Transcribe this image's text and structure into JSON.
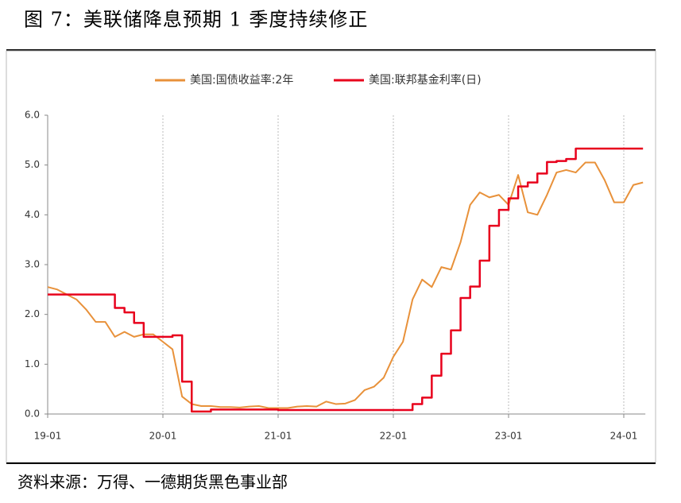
{
  "chart_data": {
    "type": "line",
    "title": "图 7：美联储降息预期 1 季度持续修正",
    "source": "资料来源：万得、一德期货黑色事业部",
    "x": [
      "19-01",
      "19-02",
      "19-03",
      "19-04",
      "19-05",
      "19-06",
      "19-07",
      "19-08",
      "19-09",
      "19-10",
      "19-11",
      "19-12",
      "20-01",
      "20-02",
      "20-03",
      "20-04",
      "20-05",
      "20-06",
      "20-07",
      "20-08",
      "20-09",
      "20-10",
      "20-11",
      "20-12",
      "21-01",
      "21-02",
      "21-03",
      "21-04",
      "21-05",
      "21-06",
      "21-07",
      "21-08",
      "21-09",
      "21-10",
      "21-11",
      "21-12",
      "22-01",
      "22-02",
      "22-03",
      "22-04",
      "22-05",
      "22-06",
      "22-07",
      "22-08",
      "22-09",
      "22-10",
      "22-11",
      "22-12",
      "23-01",
      "23-02",
      "23-03",
      "23-04",
      "23-05",
      "23-06",
      "23-07",
      "23-08",
      "23-09",
      "23-10",
      "23-11",
      "23-12",
      "24-01",
      "24-02",
      "24-03"
    ],
    "xticks": [
      "19-01",
      "20-01",
      "21-01",
      "22-01",
      "23-01",
      "24-01"
    ],
    "series": [
      {
        "name": "美国:国债收益率:2年",
        "color": "#e8913a",
        "values": [
          2.55,
          2.5,
          2.4,
          2.3,
          2.1,
          1.85,
          1.85,
          1.55,
          1.65,
          1.55,
          1.6,
          1.6,
          1.45,
          1.3,
          0.35,
          0.2,
          0.16,
          0.16,
          0.14,
          0.14,
          0.13,
          0.15,
          0.16,
          0.12,
          0.12,
          0.12,
          0.15,
          0.16,
          0.15,
          0.25,
          0.2,
          0.21,
          0.28,
          0.48,
          0.55,
          0.73,
          1.15,
          1.45,
          2.3,
          2.7,
          2.55,
          2.95,
          2.9,
          3.45,
          4.2,
          4.45,
          4.35,
          4.4,
          4.2,
          4.8,
          4.05,
          4.0,
          4.4,
          4.85,
          4.9,
          4.85,
          5.05,
          5.05,
          4.7,
          4.25,
          4.25,
          4.6,
          4.65
        ]
      },
      {
        "name": "美国:联邦基金利率(日)",
        "color": "#e8001c",
        "step": true,
        "values": [
          2.4,
          2.4,
          2.4,
          2.4,
          2.4,
          2.4,
          2.4,
          2.13,
          2.04,
          1.83,
          1.55,
          1.55,
          1.55,
          1.58,
          0.65,
          0.05,
          0.05,
          0.09,
          0.09,
          0.09,
          0.09,
          0.09,
          0.09,
          0.09,
          0.08,
          0.08,
          0.08,
          0.08,
          0.08,
          0.08,
          0.08,
          0.08,
          0.08,
          0.08,
          0.08,
          0.08,
          0.08,
          0.08,
          0.2,
          0.33,
          0.77,
          1.21,
          1.68,
          2.33,
          2.56,
          3.08,
          3.78,
          4.1,
          4.33,
          4.57,
          4.65,
          4.83,
          5.06,
          5.08,
          5.12,
          5.33,
          5.33,
          5.33,
          5.33,
          5.33,
          5.33,
          5.33,
          5.33
        ]
      }
    ],
    "ylim": [
      0,
      6
    ],
    "yticks": [
      {
        "value": 0,
        "label": "0.0"
      },
      {
        "value": 1,
        "label": "1.0"
      },
      {
        "value": 2,
        "label": "2.0"
      },
      {
        "value": 3,
        "label": "3.0"
      },
      {
        "value": 4,
        "label": "4.0"
      },
      {
        "value": 5,
        "label": "5.0"
      },
      {
        "value": 6,
        "label": "6.0"
      }
    ],
    "grid": true,
    "legend": "top"
  }
}
